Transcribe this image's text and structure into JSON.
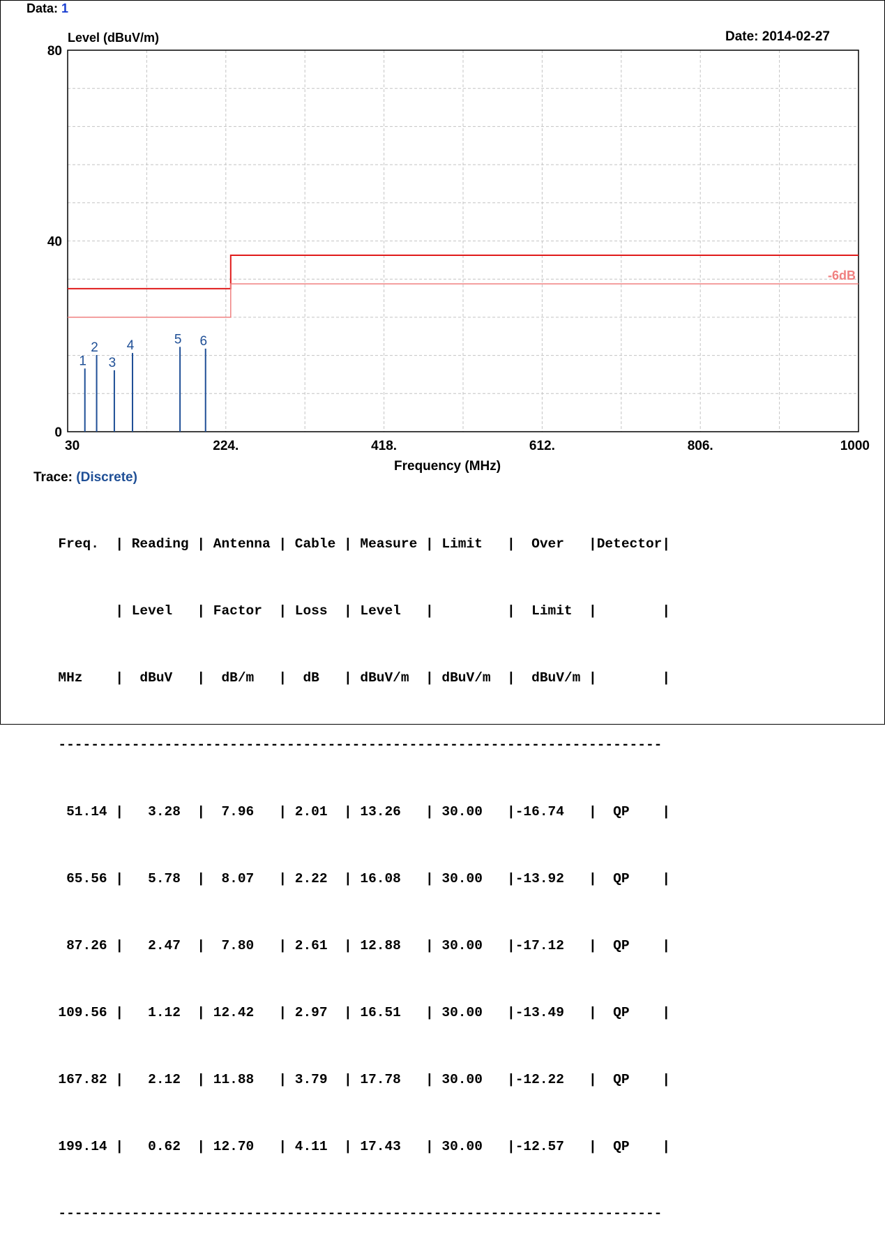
{
  "header": {
    "data_label": "Data:",
    "data_value": "1",
    "date_text": "Date: 2014-02-27",
    "trace_label": "Trace:",
    "trace_value": "(Discrete)"
  },
  "chart_data": {
    "type": "line",
    "ylabel": "Level (dBuV/m)",
    "xlabel": "Frequency (MHz)",
    "xlim": [
      30,
      1000
    ],
    "ylim": [
      0,
      80
    ],
    "x_ticks": [
      "30",
      "224.",
      "418.",
      "612.",
      "806.",
      "1000"
    ],
    "x_tick_values": [
      30,
      224,
      418,
      612,
      806,
      1000
    ],
    "y_ticks": [
      "0",
      "40",
      "80"
    ],
    "y_tick_values": [
      0,
      40,
      80
    ],
    "grid": true,
    "limit_lines": [
      {
        "name": "",
        "color": "#e01b1b",
        "x": [
          30,
          230,
          230,
          1000
        ],
        "y": [
          30,
          30,
          37,
          37
        ]
      },
      {
        "name": "-6dB",
        "color": "#f08080",
        "x": [
          30,
          230,
          230,
          1000
        ],
        "y": [
          24,
          24,
          31,
          31
        ]
      }
    ],
    "markers": [
      {
        "label": "1",
        "freq": 51.14,
        "level": 13.26
      },
      {
        "label": "2",
        "freq": 65.56,
        "level": 16.08
      },
      {
        "label": "3",
        "freq": 87.26,
        "level": 12.88
      },
      {
        "label": "4",
        "freq": 109.56,
        "level": 16.51
      },
      {
        "label": "5",
        "freq": 167.82,
        "level": 17.78
      },
      {
        "label": "6",
        "freq": 199.14,
        "level": 17.43
      }
    ],
    "marker_color": "#1f4f96"
  },
  "table": {
    "header_lines": [
      "  Freq.  | Reading | Antenna | Cable | Measure | Limit   |  Over   |Detector|",
      "         | Level   | Factor  | Loss  | Level   |         |  Limit  |        |",
      "  MHz    |  dBuV   |  dB/m   |  dB   | dBuV/m  | dBuV/m  |  dBuV/m |        |"
    ],
    "separator": "  --------------------------------------------------------------------------",
    "rows": [
      "   51.14 |   3.28  |  7.96   | 2.01  | 13.26   | 30.00   |-16.74   |  QP    |",
      "   65.56 |   5.78  |  8.07   | 2.22  | 16.08   | 30.00   |-13.92   |  QP    |",
      "   87.26 |   2.47  |  7.80   | 2.61  | 12.88   | 30.00   |-17.12   |  QP    |",
      "  109.56 |   1.12  | 12.42   | 2.97  | 16.51   | 30.00   |-13.49   |  QP    |",
      "  167.82 |   2.12  | 11.88   | 3.79  | 17.78   | 30.00   |-12.22   |  QP    |",
      "  199.14 |   0.62  | 12.70   | 4.11  | 17.43   | 30.00   |-12.57   |  QP    |"
    ],
    "footer_separator": "  --------------------------------------------------------------------------"
  }
}
